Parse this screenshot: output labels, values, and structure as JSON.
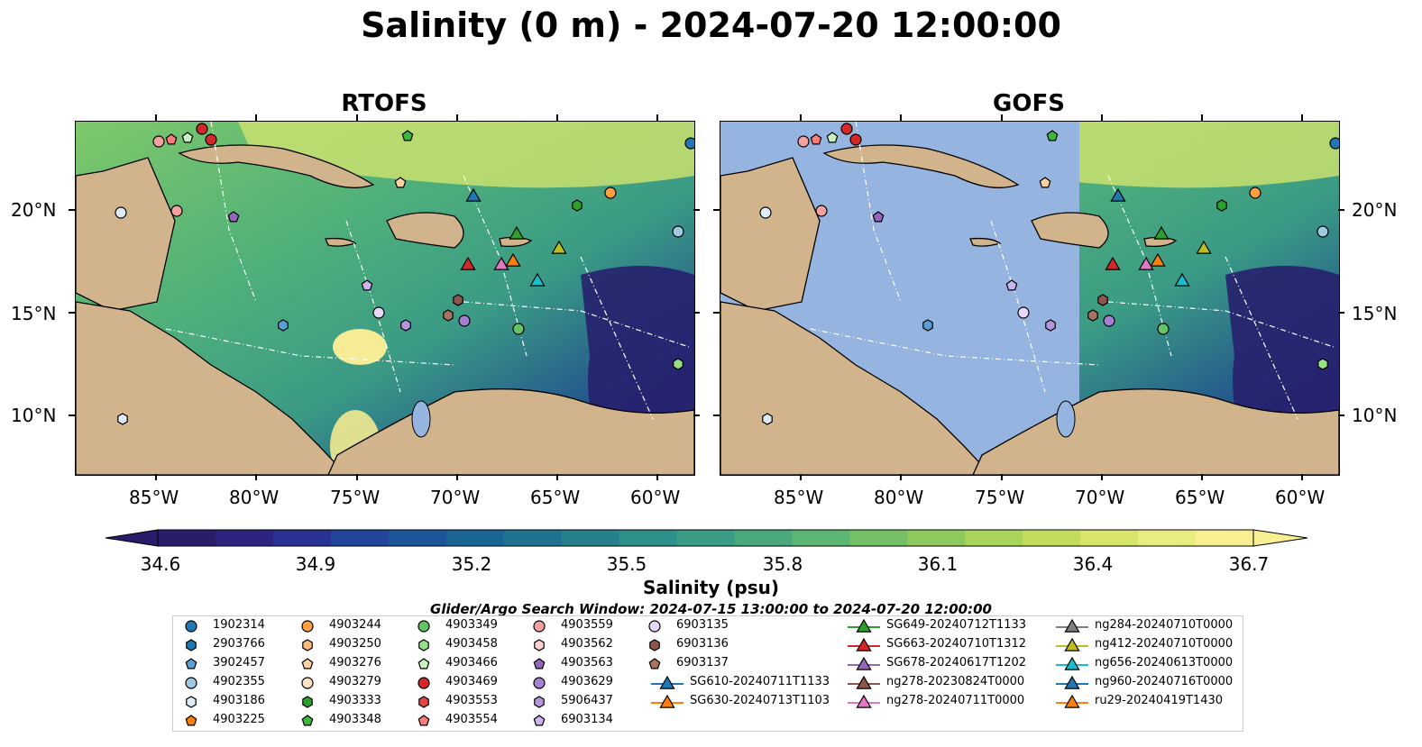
{
  "title": "Salinity (0 m) - 2024-07-20 12:00:00",
  "panels": [
    {
      "title": "RTOFS"
    },
    {
      "title": "GOFS"
    }
  ],
  "lon_ticks": [
    "85°W",
    "80°W",
    "75°W",
    "70°W",
    "65°W",
    "60°W"
  ],
  "lat_ticks": [
    "20°N",
    "15°N",
    "10°N"
  ],
  "colorbar": {
    "label": "Salinity (psu)",
    "ticks": [
      "34.6",
      "34.9",
      "35.2",
      "35.5",
      "35.8",
      "36.1",
      "36.4",
      "36.7"
    ],
    "min": 34.6,
    "max": 36.7
  },
  "search_window": "Glider/Argo Search Window: 2024-07-15 13:00:00 to 2024-07-20 12:00:00",
  "legend": [
    {
      "label": "1902314",
      "marker": "circle",
      "color": "#1f77b4"
    },
    {
      "label": "2903766",
      "marker": "hexagon",
      "color": "#1f77b4"
    },
    {
      "label": "3902457",
      "marker": "pentagon",
      "color": "#5aa0d6"
    },
    {
      "label": "4902355",
      "marker": "circle",
      "color": "#9ecae1"
    },
    {
      "label": "4903186",
      "marker": "hexagon",
      "color": "#deebf7"
    },
    {
      "label": "4903225",
      "marker": "pentagon",
      "color": "#ff7f0e"
    },
    {
      "label": "4903244",
      "marker": "circle",
      "color": "#ff9f40"
    },
    {
      "label": "4903250",
      "marker": "hexagon",
      "color": "#ffbb78"
    },
    {
      "label": "4903276",
      "marker": "pentagon",
      "color": "#ffd2a6"
    },
    {
      "label": "4903279",
      "marker": "circle",
      "color": "#ffe4c8"
    },
    {
      "label": "4903333",
      "marker": "hexagon",
      "color": "#2ca02c"
    },
    {
      "label": "4903348",
      "marker": "pentagon",
      "color": "#3cb63c"
    },
    {
      "label": "4903349",
      "marker": "circle",
      "color": "#66c266"
    },
    {
      "label": "4903458",
      "marker": "hexagon",
      "color": "#98df8a"
    },
    {
      "label": "4903466",
      "marker": "pentagon",
      "color": "#c9f2c0"
    },
    {
      "label": "4903469",
      "marker": "circle",
      "color": "#d62728"
    },
    {
      "label": "4903553",
      "marker": "hexagon",
      "color": "#e04445"
    },
    {
      "label": "4903554",
      "marker": "pentagon",
      "color": "#ff7a7a"
    },
    {
      "label": "4903559",
      "marker": "circle",
      "color": "#f4a0a0"
    },
    {
      "label": "4903562",
      "marker": "hexagon",
      "color": "#ffd0d0"
    },
    {
      "label": "4903563",
      "marker": "pentagon",
      "color": "#9467bd"
    },
    {
      "label": "4903629",
      "marker": "circle",
      "color": "#a57fd0"
    },
    {
      "label": "5906437",
      "marker": "hexagon",
      "color": "#b594e0"
    },
    {
      "label": "6903134",
      "marker": "pentagon",
      "color": "#cdb4f0"
    },
    {
      "label": "6903135",
      "marker": "circle",
      "color": "#e7d8fb"
    },
    {
      "label": "6903136",
      "marker": "hexagon",
      "color": "#8c564b"
    },
    {
      "label": "6903137",
      "marker": "pentagon",
      "color": "#a87260"
    },
    {
      "label": "SG610-20240711T1133",
      "marker": "triangle-line",
      "color": "#1f77b4"
    },
    {
      "label": "SG630-20240713T1103",
      "marker": "triangle-line",
      "color": "#ff7f0e"
    },
    {
      "label": "SG649-20240712T1133",
      "marker": "triangle-line",
      "color": "#2ca02c"
    },
    {
      "label": "SG663-20240710T1312",
      "marker": "triangle-line",
      "color": "#d62728"
    },
    {
      "label": "SG678-20240617T1202",
      "marker": "triangle-line",
      "color": "#9467bd"
    },
    {
      "label": "ng278-20230824T0000",
      "marker": "triangle-line",
      "color": "#8c564b"
    },
    {
      "label": "ng278-20240711T0000",
      "marker": "triangle-line",
      "color": "#e377c2"
    },
    {
      "label": "ng284-20240710T0000",
      "marker": "triangle-line",
      "color": "#7f7f7f"
    },
    {
      "label": "ng412-20240710T0000",
      "marker": "triangle-line",
      "color": "#bcbd22"
    },
    {
      "label": "ng656-20240613T0000",
      "marker": "triangle-line",
      "color": "#17becf"
    },
    {
      "label": "ng960-20240716T0000",
      "marker": "triangle-line",
      "color": "#1f77b4"
    },
    {
      "label": "ru29-20240419T1430",
      "marker": "triangle-line",
      "color": "#ff7f0e"
    }
  ],
  "colors": {
    "land": "#d2b48c",
    "gofs_mask": "#95b4e0",
    "low": "#2a1a6e",
    "mid": "#2f8f8a",
    "high": "#fdef9a"
  }
}
